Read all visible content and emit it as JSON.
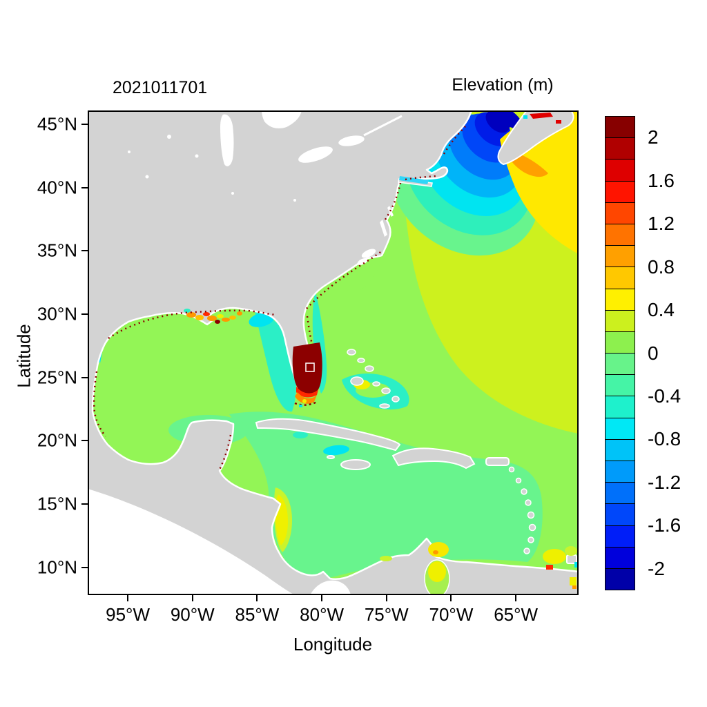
{
  "header": {
    "left_title": "2021011701",
    "right_title": "Elevation (m)"
  },
  "chart_data": {
    "type": "heatmap",
    "title": "2021011701",
    "subtitle": "Elevation (m)",
    "xlabel": "Longitude",
    "ylabel": "Latitude",
    "grid": false,
    "axes": {
      "lon_left_degW": 98.1,
      "lon_right_degW": 60.15,
      "lat_top": 46.1,
      "lat_bottom": 7.8,
      "x_ticks": [
        {
          "label": "95°W",
          "lon_degW": 95
        },
        {
          "label": "90°W",
          "lon_degW": 90
        },
        {
          "label": "85°W",
          "lon_degW": 85
        },
        {
          "label": "80°W",
          "lon_degW": 80
        },
        {
          "label": "75°W",
          "lon_degW": 75
        },
        {
          "label": "70°W",
          "lon_degW": 70
        },
        {
          "label": "65°W",
          "lon_degW": 65
        }
      ],
      "y_ticks": [
        {
          "label": "45°N",
          "lat": 45
        },
        {
          "label": "40°N",
          "lat": 40
        },
        {
          "label": "35°N",
          "lat": 35
        },
        {
          "label": "30°N",
          "lat": 30
        },
        {
          "label": "25°N",
          "lat": 25
        },
        {
          "label": "20°N",
          "lat": 20
        },
        {
          "label": "15°N",
          "lat": 15
        },
        {
          "label": "10°N",
          "lat": 10
        }
      ]
    },
    "colorbar": {
      "title": "Elevation (m)",
      "min": -2.2,
      "max": 2.2,
      "band_step": 0.2,
      "tick_labels": [
        "2",
        "1.6",
        "1.2",
        "0.8",
        "0.4",
        "0",
        "-0.4",
        "-0.8",
        "-1.2",
        "-1.6",
        "-2"
      ],
      "band_colors_top_to_bottom": [
        "#870000",
        "#B00000",
        "#DE0000",
        "#FF1400",
        "#FF4600",
        "#FF7300",
        "#FFA000",
        "#FFC800",
        "#FFF000",
        "#CCF01E",
        "#8DF04E",
        "#67F38A",
        "#45F4A6",
        "#1EF1CC",
        "#00E8F5",
        "#00C3F8",
        "#009BFA",
        "#0070FA",
        "#0047FA",
        "#001EF8",
        "#0000DC",
        "#0000A8"
      ]
    },
    "regions": [
      {
        "name": "northwest-atlantic",
        "approx_value_m": 0.3
      },
      {
        "name": "scotian-shelf-yellow",
        "approx_value_m": 0.5
      },
      {
        "name": "nova-scotia-coast-orange",
        "approx_value_m": 0.9
      },
      {
        "name": "gulf-of-mexico",
        "approx_value_m": 0.1
      },
      {
        "name": "caribbean-sea",
        "approx_value_m": -0.1
      },
      {
        "name": "gulf-of-maine-bay-of-fundy",
        "approx_value_m": -2.1
      },
      {
        "name": "minas-basin-red-sliver",
        "approx_value_m": 1.8
      },
      {
        "name": "south-florida-everglades-surge",
        "approx_value_m": 2.2
      },
      {
        "name": "louisiana-mississippi-coast",
        "approx_value_m": 1.0
      },
      {
        "name": "west-florida-shelf",
        "approx_value_m": -0.5
      },
      {
        "name": "bahamas-banks",
        "approx_value_m": -0.5
      },
      {
        "name": "nicaragua-coast",
        "approx_value_m": 0.5
      },
      {
        "name": "lake-maracaibo",
        "approx_value_m": 0.5
      },
      {
        "name": "gulf-of-venezuela",
        "approx_value_m": 0.6
      },
      {
        "name": "trinidad-gulf-of-paria",
        "approx_value_m": 1.4
      }
    ]
  },
  "colors": {
    "background": "#FFFFFF",
    "frame": "#000000",
    "text": "#000000",
    "land": "#D3D3D3",
    "no_data": "#FFFFFF",
    "atlantic_mid": "#93F556",
    "atlantic_ne": "#CDF11E",
    "ne_yellow": "#FFE800",
    "scotian_orange": "#FFA000",
    "caribbean": "#68F48D",
    "teal": "#2BEFC6",
    "cyan": "#00E4F1",
    "sound_blue": "#30D6F8",
    "maine_rings": [
      "#68F48D",
      "#2EEFBB",
      "#00E4F1",
      "#00B4F8",
      "#007CFA",
      "#0046F8",
      "#001CE8",
      "#0000BE"
    ],
    "surge_darkred": "#8C0000",
    "surge_red": "#FF2800",
    "surge_orange": "#FF8A00",
    "surge_yellow": "#EFF000",
    "patch_yellowgreen": "#C9F42C",
    "patch_yellow": "#EFF000",
    "patch_gold": "#F6E800",
    "patch_orange": "#FF9800",
    "patch_amber": "#FFC100",
    "maracaibo_green": "#A6EF4F",
    "sliver_red": "#E00000",
    "speckle": "#8C0000"
  }
}
